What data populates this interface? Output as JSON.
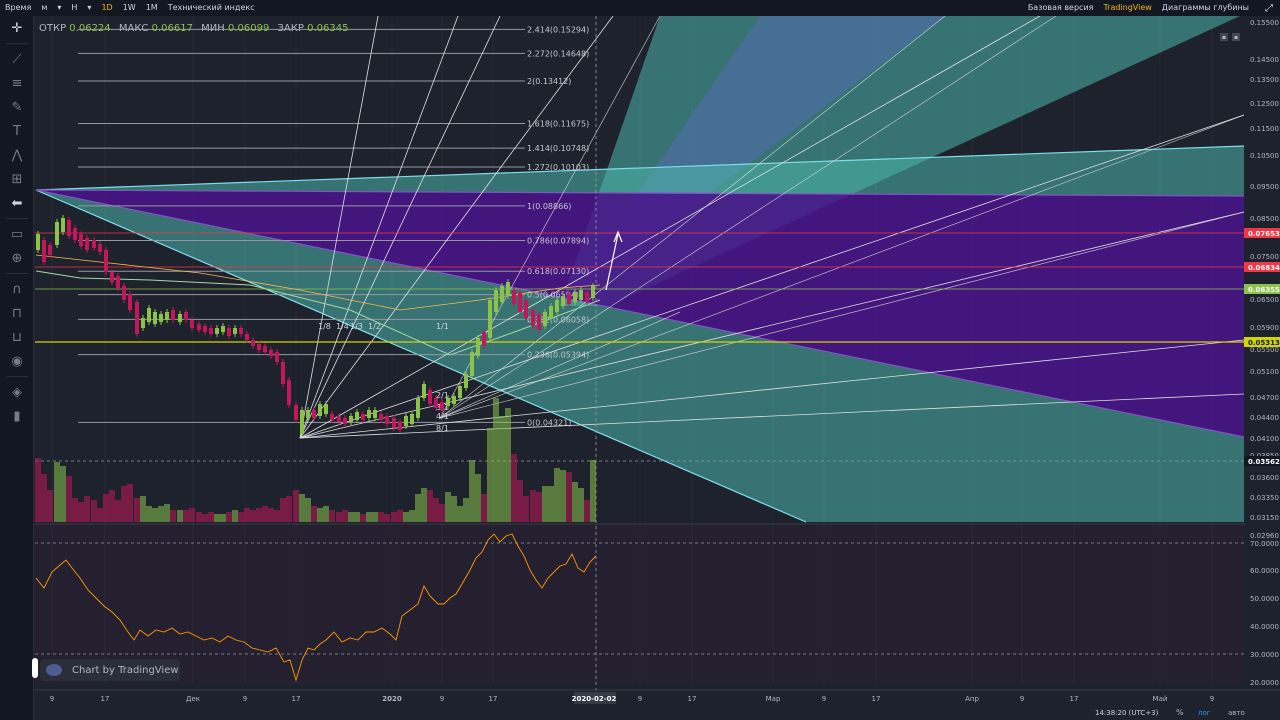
{
  "topbar": {
    "left_items": [
      {
        "label": "Время",
        "active": false
      },
      {
        "label": "м",
        "active": false
      },
      {
        "label": "▾",
        "active": false
      },
      {
        "label": "Н",
        "active": false
      },
      {
        "label": "▾",
        "active": false
      },
      {
        "label": "1D",
        "active": true
      },
      {
        "label": "1W",
        "active": false
      },
      {
        "label": "1M",
        "active": false
      },
      {
        "label": "Технический индекс",
        "active": false
      }
    ],
    "right_items": [
      {
        "label": "Базовая версия",
        "active": false
      },
      {
        "label": "TradingView",
        "active": true
      },
      {
        "label": "Диаграммы глубины",
        "active": false
      }
    ]
  },
  "toolbar": {
    "icons": [
      "crosshair-icon",
      "trend-line-icon",
      "horizontal-lines-icon",
      "brush-icon",
      "text-icon",
      "pattern-icon",
      "measure-tools-icon",
      "back-arrow-icon",
      "ruler-icon",
      "zoom-in-icon",
      "magnet-icon",
      "lock-drawings-icon",
      "unlock-icon",
      "eye-icon",
      "layers-icon",
      "trash-icon"
    ]
  },
  "ohlc": {
    "open_label": "ОТКР",
    "open": "0.06224",
    "high_label": "МАКС",
    "high": "0.06617",
    "low_label": "МИН",
    "low": "0.06099",
    "close_label": "ЗАКР",
    "close": "0.06345"
  },
  "fib_levels": [
    {
      "label": "2.414(0.15294)",
      "price": 0.15294
    },
    {
      "label": "2.272(0.14648)",
      "price": 0.14648
    },
    {
      "label": "2(0.13412)",
      "price": 0.13412
    },
    {
      "label": "1.618(0.11675)",
      "price": 0.11675
    },
    {
      "label": "1.414(0.10748)",
      "price": 0.10748
    },
    {
      "label": "1.272(0.10103)",
      "price": 0.10103
    },
    {
      "label": "1(0.08866)",
      "price": 0.08866
    },
    {
      "label": "0.786(0.07894)",
      "price": 0.07894
    },
    {
      "label": "0.618(0.07130)",
      "price": 0.0713
    },
    {
      "label": "0.5(0.06594)",
      "price": 0.06594
    },
    {
      "label": "0.382(0.06058)",
      "price": 0.06058
    },
    {
      "label": "0.236(0.05394)",
      "price": 0.05394
    },
    {
      "label": "0(0.04321)",
      "price": 0.04321
    }
  ],
  "gann_labels": [
    "1/8",
    "1/4",
    "1/3",
    "1/2",
    "1/1",
    "2/1",
    "3/1",
    "4/1",
    "8/1"
  ],
  "price_axis": {
    "ticks": [
      "0.15500",
      "0.14500",
      "0.13500",
      "0.12500",
      "0.11500",
      "0.10500",
      "0.09500",
      "0.08500",
      "0.07500",
      "0.06500",
      "0.05900",
      "0.05500",
      "0.05100",
      "0.04700",
      "0.04400",
      "0.04100",
      "0.03850",
      "0.03600",
      "0.03350",
      "0.03150",
      "0.02960"
    ],
    "highlights": [
      {
        "label": "0.07653",
        "color": "#f23645"
      },
      {
        "label": "0.06834",
        "color": "#f23645"
      },
      {
        "label": "0.06355",
        "color": "#8bc34a"
      },
      {
        "label": "0.05313",
        "color": "#d4d400"
      },
      {
        "label": "0.03562",
        "color": "#131722"
      }
    ]
  },
  "rsi_axis": {
    "ticks": [
      "70.0000",
      "60.0000",
      "50.0000",
      "40.0000",
      "30.0000",
      "20.0000"
    ]
  },
  "time_axis": {
    "ticks": [
      "9",
      "17",
      "Дек",
      "9",
      "17",
      "2020",
      "9",
      "17",
      "2020-02-02",
      "9",
      "17",
      "Мар",
      "9",
      "17",
      "Апр",
      "9",
      "17",
      "Май",
      "9"
    ],
    "highlighted": "2020-02-02"
  },
  "status": {
    "time": "14:38:20 (UTC+3)",
    "percent": "%",
    "log": "лог",
    "auto": "авто"
  },
  "branding": {
    "label": "Chart by TradingView"
  },
  "colors": {
    "background": "#1e222d",
    "up": "#8bc34a",
    "down": "#c2185b",
    "teal_fill": "#4db6ac",
    "purple_fill": "#4a148c"
  }
}
